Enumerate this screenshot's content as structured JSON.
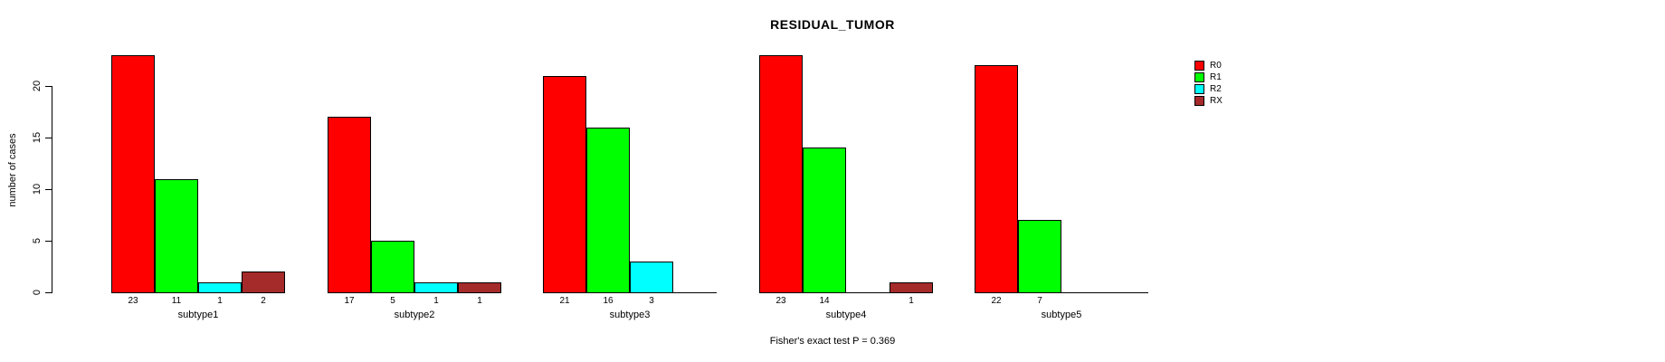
{
  "chart_data": {
    "type": "bar",
    "title": "RESIDUAL_TUMOR",
    "ylabel": "number of cases",
    "xlabel": "",
    "footnote": "Fisher's exact test P = 0.369",
    "categories": [
      "subtype1",
      "subtype2",
      "subtype3",
      "subtype4",
      "subtype5"
    ],
    "series": [
      {
        "name": "R0",
        "color": "#ff0000",
        "values": [
          23,
          17,
          21,
          23,
          22
        ]
      },
      {
        "name": "R1",
        "color": "#00ff00",
        "values": [
          11,
          5,
          16,
          14,
          7
        ]
      },
      {
        "name": "R2",
        "color": "#00ffff",
        "values": [
          1,
          1,
          3,
          0,
          0
        ]
      },
      {
        "name": "RX",
        "color": "#a52a2a",
        "values": [
          2,
          1,
          0,
          1,
          0
        ]
      }
    ],
    "bar_count_labels": [
      [
        "23",
        "11",
        "1",
        "2"
      ],
      [
        "17",
        "5",
        "1",
        "1"
      ],
      [
        "21",
        "16",
        "3",
        ""
      ],
      [
        "23",
        "14",
        "",
        "1"
      ],
      [
        "22",
        "7",
        "",
        ""
      ]
    ],
    "yticks": [
      0,
      5,
      10,
      15,
      20
    ],
    "ylim": [
      0,
      23
    ],
    "grid": false,
    "legend_position": "right",
    "legend_entries": [
      "R0",
      "R1",
      "R2",
      "RX"
    ],
    "axis_color": "#000000",
    "background_color": "#ffffff"
  }
}
